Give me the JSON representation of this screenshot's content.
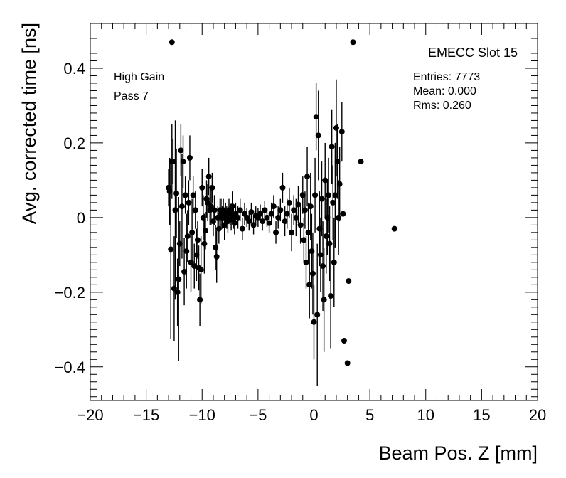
{
  "chart_data": {
    "type": "scatter",
    "title": "EMECC Slot 15",
    "xlabel": "Beam Pos. Z [mm]",
    "ylabel": "Avg. corrected time [ns]",
    "xlim": [
      -20,
      20
    ],
    "ylim": [
      -0.49,
      0.52
    ],
    "x_ticks": [
      -20,
      -15,
      -10,
      -5,
      0,
      5,
      10,
      15,
      20
    ],
    "x_tick_labels": [
      "−20",
      "−15",
      "−10",
      "−5",
      "0",
      "5",
      "10",
      "15",
      "20"
    ],
    "y_ticks": [
      -0.4,
      -0.2,
      0,
      0.2,
      0.4
    ],
    "y_tick_labels": [
      "−0.4",
      "−0.2",
      "0",
      "0.2",
      "0.4"
    ],
    "labels": {
      "gain": "High Gain",
      "pass": "Pass 7"
    },
    "stats": {
      "entries": "Entries: 7773",
      "mean": "Mean: 0.000",
      "rms": "Rms: 0.260"
    },
    "points": [
      {
        "x": -13.0,
        "y": 0.08,
        "err": 0.05
      },
      {
        "x": -12.9,
        "y": 0.07,
        "err": 0.09
      },
      {
        "x": -12.8,
        "y": -0.085,
        "err": 0.24
      },
      {
        "x": -12.7,
        "y": 0.15,
        "err": 0.1
      },
      {
        "x": -12.6,
        "y": 0.15,
        "err": 0.06
      },
      {
        "x": -12.5,
        "y": -0.19,
        "err": 0.14
      },
      {
        "x": -12.4,
        "y": 0.02,
        "err": 0.24
      },
      {
        "x": -12.3,
        "y": 0.065,
        "err": 0.12
      },
      {
        "x": -12.2,
        "y": -0.2,
        "err": 0.09
      },
      {
        "x": -12.1,
        "y": -0.165,
        "err": 0.22
      },
      {
        "x": -12.0,
        "y": -0.07,
        "err": 0.06
      },
      {
        "x": -11.9,
        "y": 0.18,
        "err": 0.07
      },
      {
        "x": -11.8,
        "y": 0.03,
        "err": 0.14
      },
      {
        "x": -11.7,
        "y": 0.15,
        "err": 0.07
      },
      {
        "x": -11.6,
        "y": -0.145,
        "err": 0.09
      },
      {
        "x": -11.5,
        "y": 0.06,
        "err": 0.05
      },
      {
        "x": -11.4,
        "y": -0.09,
        "err": 0.1
      },
      {
        "x": -11.3,
        "y": -0.05,
        "err": 0.07
      },
      {
        "x": -11.2,
        "y": 0.04,
        "err": 0.06
      },
      {
        "x": -11.1,
        "y": 0.16,
        "err": 0.06
      },
      {
        "x": -11.0,
        "y": -0.12,
        "err": 0.08
      },
      {
        "x": -10.9,
        "y": -0.04,
        "err": 0.09
      },
      {
        "x": -10.8,
        "y": 0.06,
        "err": 0.05
      },
      {
        "x": -10.7,
        "y": -0.13,
        "err": 0.06
      },
      {
        "x": -10.6,
        "y": 0.02,
        "err": 0.05
      },
      {
        "x": -10.5,
        "y": -0.1,
        "err": 0.07
      },
      {
        "x": -10.4,
        "y": -0.06,
        "err": 0.05
      },
      {
        "x": -10.3,
        "y": -0.135,
        "err": 0.06
      },
      {
        "x": -10.2,
        "y": -0.22,
        "err": 0.07
      },
      {
        "x": -10.1,
        "y": -0.14,
        "err": 0.09
      },
      {
        "x": -10.0,
        "y": 0.08,
        "err": 0.05
      },
      {
        "x": -9.9,
        "y": 0.0,
        "err": 0.06
      },
      {
        "x": -9.8,
        "y": -0.07,
        "err": 0.08
      },
      {
        "x": -9.7,
        "y": -0.035,
        "err": 0.05
      },
      {
        "x": -9.6,
        "y": 0.05,
        "err": 0.05
      },
      {
        "x": -9.5,
        "y": 0.04,
        "err": 0.05
      },
      {
        "x": -9.4,
        "y": 0.11,
        "err": 0.05
      },
      {
        "x": -9.3,
        "y": 0.02,
        "err": 0.04
      },
      {
        "x": -9.2,
        "y": 0.03,
        "err": 0.05
      },
      {
        "x": -9.1,
        "y": 0.08,
        "err": 0.04
      },
      {
        "x": -9.0,
        "y": -0.01,
        "err": 0.04
      },
      {
        "x": -8.9,
        "y": 0.02,
        "err": 0.04
      },
      {
        "x": -8.8,
        "y": -0.08,
        "err": 0.06
      },
      {
        "x": -8.7,
        "y": -0.105,
        "err": 0.07
      },
      {
        "x": -8.6,
        "y": 0.0,
        "err": 0.03
      },
      {
        "x": -8.5,
        "y": -0.03,
        "err": 0.04
      },
      {
        "x": -8.4,
        "y": 0.02,
        "err": 0.03
      },
      {
        "x": -8.3,
        "y": 0.01,
        "err": 0.04
      },
      {
        "x": -8.2,
        "y": 0.0,
        "err": 0.03
      },
      {
        "x": -8.1,
        "y": 0.02,
        "err": 0.03
      },
      {
        "x": -8.0,
        "y": -0.02,
        "err": 0.04
      },
      {
        "x": -7.9,
        "y": 0.01,
        "err": 0.03
      },
      {
        "x": -7.8,
        "y": 0.0,
        "err": 0.03
      },
      {
        "x": -7.7,
        "y": -0.01,
        "err": 0.03
      },
      {
        "x": -7.6,
        "y": 0.02,
        "err": 0.03
      },
      {
        "x": -7.5,
        "y": 0.01,
        "err": 0.03
      },
      {
        "x": -7.4,
        "y": -0.005,
        "err": 0.03
      },
      {
        "x": -7.3,
        "y": 0.03,
        "err": 0.04
      },
      {
        "x": -7.2,
        "y": 0.0,
        "err": 0.03
      },
      {
        "x": -7.1,
        "y": -0.015,
        "err": 0.03
      },
      {
        "x": -7.0,
        "y": 0.01,
        "err": 0.03
      },
      {
        "x": -6.8,
        "y": 0.0,
        "err": 0.03
      },
      {
        "x": -6.6,
        "y": 0.02,
        "err": 0.03
      },
      {
        "x": -6.4,
        "y": -0.03,
        "err": 0.03
      },
      {
        "x": -6.2,
        "y": 0.01,
        "err": 0.03
      },
      {
        "x": -6.0,
        "y": 0.0,
        "err": 0.025
      },
      {
        "x": -5.8,
        "y": -0.01,
        "err": 0.025
      },
      {
        "x": -5.6,
        "y": 0.015,
        "err": 0.025
      },
      {
        "x": -5.4,
        "y": -0.02,
        "err": 0.025
      },
      {
        "x": -5.2,
        "y": 0.005,
        "err": 0.025
      },
      {
        "x": -5.0,
        "y": 0.0,
        "err": 0.025
      },
      {
        "x": -4.8,
        "y": 0.01,
        "err": 0.025
      },
      {
        "x": -4.6,
        "y": -0.01,
        "err": 0.025
      },
      {
        "x": -4.4,
        "y": 0.02,
        "err": 0.025
      },
      {
        "x": -4.2,
        "y": 0.0,
        "err": 0.025
      },
      {
        "x": -4.0,
        "y": -0.015,
        "err": 0.025
      },
      {
        "x": -3.8,
        "y": 0.01,
        "err": 0.03
      },
      {
        "x": -3.6,
        "y": 0.03,
        "err": 0.03
      },
      {
        "x": -3.4,
        "y": -0.04,
        "err": 0.03
      },
      {
        "x": -3.2,
        "y": 0.0,
        "err": 0.03
      },
      {
        "x": -3.0,
        "y": 0.02,
        "err": 0.03
      },
      {
        "x": -2.8,
        "y": 0.08,
        "err": 0.04
      },
      {
        "x": -2.6,
        "y": -0.01,
        "err": 0.04
      },
      {
        "x": -2.4,
        "y": 0.01,
        "err": 0.04
      },
      {
        "x": -2.2,
        "y": 0.04,
        "err": 0.04
      },
      {
        "x": -2.0,
        "y": -0.04,
        "err": 0.05
      },
      {
        "x": -1.8,
        "y": 0.02,
        "err": 0.04
      },
      {
        "x": -1.6,
        "y": 0.0,
        "err": 0.05
      },
      {
        "x": -1.4,
        "y": 0.035,
        "err": 0.05
      },
      {
        "x": -1.2,
        "y": -0.02,
        "err": 0.05
      },
      {
        "x": -1.0,
        "y": 0.06,
        "err": 0.05
      },
      {
        "x": -0.9,
        "y": -0.06,
        "err": 0.06
      },
      {
        "x": -0.8,
        "y": 0.02,
        "err": 0.05
      },
      {
        "x": -0.7,
        "y": -0.12,
        "err": 0.07
      },
      {
        "x": -0.6,
        "y": 0.11,
        "err": 0.08
      },
      {
        "x": -0.5,
        "y": -0.04,
        "err": 0.08
      },
      {
        "x": -0.4,
        "y": -0.18,
        "err": 0.09
      },
      {
        "x": -0.3,
        "y": 0.03,
        "err": 0.09
      },
      {
        "x": -0.2,
        "y": -0.09,
        "err": 0.1
      },
      {
        "x": -0.1,
        "y": -0.15,
        "err": 0.11
      },
      {
        "x": 0.0,
        "y": -0.28,
        "err": 0.1
      },
      {
        "x": 0.1,
        "y": 0.06,
        "err": 0.1
      },
      {
        "x": 0.2,
        "y": 0.27,
        "err": 0.09
      },
      {
        "x": 0.3,
        "y": -0.26,
        "err": 0.19
      },
      {
        "x": 0.4,
        "y": 0.22,
        "err": 0.12
      },
      {
        "x": 0.5,
        "y": -0.03,
        "err": 0.1
      },
      {
        "x": 0.6,
        "y": -0.1,
        "err": 0.1
      },
      {
        "x": 0.7,
        "y": 0.05,
        "err": 0.1
      },
      {
        "x": 0.8,
        "y": -0.13,
        "err": 0.12
      },
      {
        "x": 0.9,
        "y": -0.22,
        "err": 0.14
      },
      {
        "x": 1.0,
        "y": 0.1,
        "err": 0.1
      },
      {
        "x": 1.1,
        "y": -0.05,
        "err": 0.1
      },
      {
        "x": 1.2,
        "y": 0.0,
        "err": 0.1
      },
      {
        "x": 1.3,
        "y": 0.06,
        "err": 0.1
      },
      {
        "x": 1.4,
        "y": -0.07,
        "err": 0.1
      },
      {
        "x": 1.5,
        "y": -0.21,
        "err": 0.14
      },
      {
        "x": 1.6,
        "y": 0.19,
        "err": 0.1
      },
      {
        "x": 1.7,
        "y": 0.04,
        "err": 0.1
      },
      {
        "x": 1.8,
        "y": -0.12,
        "err": 0.12
      },
      {
        "x": 1.9,
        "y": 0.06,
        "err": 0.14
      },
      {
        "x": 2.0,
        "y": 0.24,
        "err": 0.13
      },
      {
        "x": 2.1,
        "y": 0.15,
        "err": 0.1
      },
      {
        "x": 2.2,
        "y": 0.0,
        "err": 0.1
      },
      {
        "x": 2.3,
        "y": 0.09,
        "err": 0.1
      },
      {
        "x": 2.5,
        "y": 0.23,
        "err": 0.08
      },
      {
        "x": 2.6,
        "y": 0.01,
        "err": 0
      },
      {
        "x": 2.7,
        "y": -0.33,
        "err": 0
      },
      {
        "x": 3.0,
        "y": -0.39,
        "err": 0
      },
      {
        "x": 3.1,
        "y": -0.17,
        "err": 0
      },
      {
        "x": 3.5,
        "y": 0.47,
        "err": 0
      },
      {
        "x": 4.2,
        "y": 0.15,
        "err": 0
      },
      {
        "x": 7.2,
        "y": -0.03,
        "err": 0
      },
      {
        "x": -12.7,
        "y": 0.47,
        "err": 0
      }
    ]
  }
}
